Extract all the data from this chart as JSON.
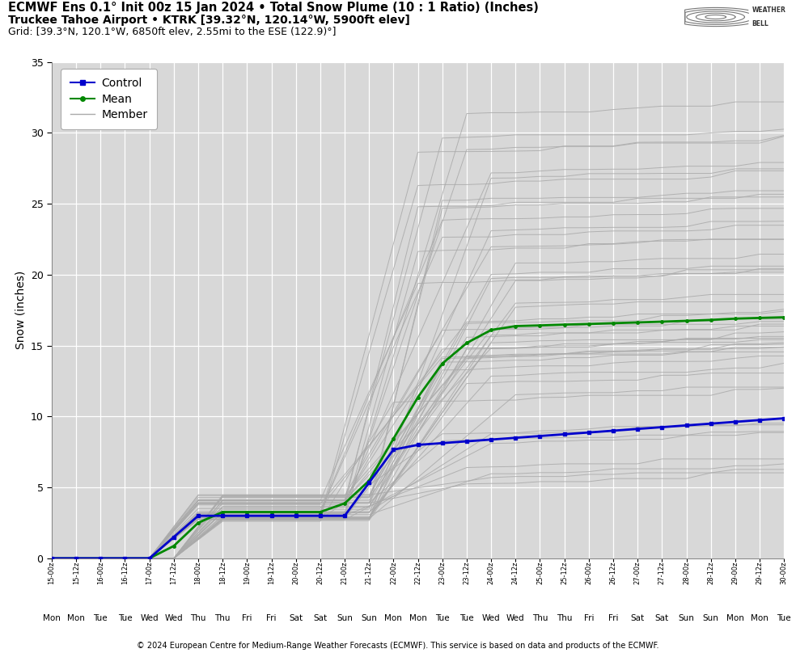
{
  "title_line1": "ECMWF Ens 0.1° Init 00z 15 Jan 2024 • Total Snow Plume (10 : 1 Ratio) (Inches)",
  "title_line2": "Truckee Tahoe Airport • KTRK [39.32°N, 120.14°W, 5900ft elev]",
  "title_line3": "Grid: [39.3°N, 120.1°W, 6850ft elev, 2.55mi to the ESE (122.9)°]",
  "ylabel": "Snow (inches)",
  "xlabel_days": [
    "Mon",
    "Mon",
    "Tue",
    "Tue",
    "Wed",
    "Wed",
    "Thu",
    "Thu",
    "Fri",
    "Fri",
    "Sat",
    "Sat",
    "Sun",
    "Sun",
    "Mon",
    "Mon",
    "Tue",
    "Tue",
    "Wed",
    "Wed",
    "Thu",
    "Thu",
    "Fri",
    "Fri",
    "Sat",
    "Sat",
    "Sun",
    "Sun",
    "Mon",
    "Mon",
    "Tue"
  ],
  "xtick_labels": [
    "15-00z",
    "15-12z",
    "16-00z",
    "16-12z",
    "17-00z",
    "17-12z",
    "18-00z",
    "18-12z",
    "19-00z",
    "19-12z",
    "20-00z",
    "20-12z",
    "21-00z",
    "21-12z",
    "22-00z",
    "22-12z",
    "23-00z",
    "23-12z",
    "24-00z",
    "24-12z",
    "25-00z",
    "25-12z",
    "26-00z",
    "26-12z",
    "27-00z",
    "27-12z",
    "28-00z",
    "28-12z",
    "29-00z",
    "29-12z",
    "30-00z"
  ],
  "n_steps": 31,
  "ylim": [
    0,
    35
  ],
  "yticks": [
    0,
    5,
    10,
    15,
    20,
    25,
    30,
    35
  ],
  "background_color": "#d8d8d8",
  "grid_color": "#ffffff",
  "member_color": "#aaaaaa",
  "control_color": "#0000cc",
  "mean_color": "#008800",
  "copyright": "© 2024 European Centre for Medium-Range Weather Forecasts (ECMWF). This service is based on data and products of the ECMWF.",
  "n_members": 50,
  "fig_width": 9.84,
  "fig_height": 8.08,
  "dpi": 100
}
